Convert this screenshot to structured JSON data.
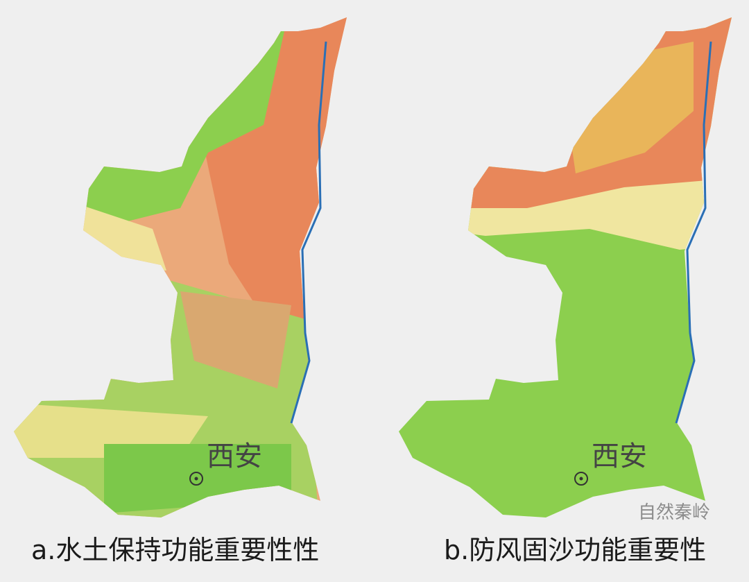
{
  "maps": [
    {
      "caption": "a.水土保持功能重要性性",
      "city_label": "西安"
    },
    {
      "caption": "b.防风固沙功能重要性",
      "city_label": "西安"
    }
  ],
  "watermark": "自然秦岭",
  "colors": {
    "high": "#e8875a",
    "medium_high": "#eba97a",
    "medium": "#f0e29a",
    "low": "#8ccf4e",
    "river": "#2a6fb5",
    "background": "#efefef"
  }
}
